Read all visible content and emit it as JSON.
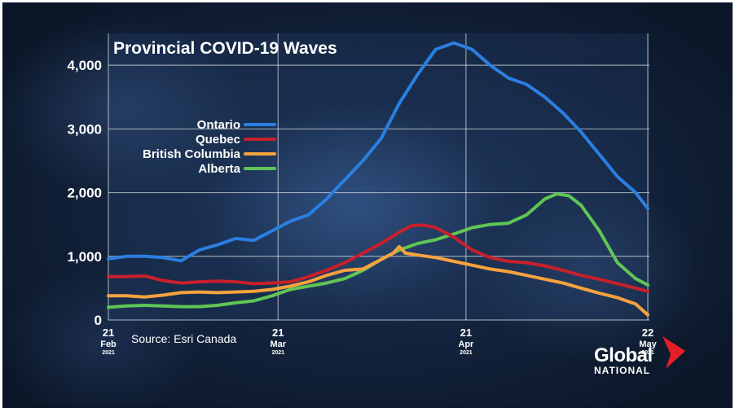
{
  "chart_data": {
    "type": "line",
    "title": "Provincial COVID-19 Waves",
    "source": "Source: Esri Canada",
    "xlabel": "",
    "ylabel": "",
    "ylim": [
      0,
      4500
    ],
    "yticks": [
      {
        "value": 0,
        "label": "0"
      },
      {
        "value": 1000,
        "label": "1,000"
      },
      {
        "value": 2000,
        "label": "2,000"
      },
      {
        "value": 3000,
        "label": "3,000"
      },
      {
        "value": 4000,
        "label": "4,000"
      }
    ],
    "xticks": [
      {
        "day": 0,
        "date": "21",
        "month": "Feb",
        "year": "2021"
      },
      {
        "day": 28,
        "date": "21",
        "month": "Mar",
        "year": "2021"
      },
      {
        "day": 59,
        "date": "21",
        "month": "Apr",
        "year": "2021"
      },
      {
        "day": 89,
        "date": "22",
        "month": "May",
        "year": "2021"
      }
    ],
    "grid": true,
    "legend_position": "upper-left",
    "series": [
      {
        "name": "Ontario",
        "color": "#2a7fe0",
        "x": [
          0,
          3,
          6,
          9,
          12,
          15,
          18,
          21,
          24,
          27,
          30,
          33,
          36,
          39,
          42,
          45,
          48,
          51,
          54,
          57,
          60,
          63,
          66,
          69,
          72,
          75,
          78,
          81,
          84,
          87,
          89
        ],
        "y": [
          960,
          1000,
          1000,
          980,
          930,
          1100,
          1180,
          1280,
          1250,
          1400,
          1550,
          1650,
          1900,
          2200,
          2500,
          2850,
          3400,
          3850,
          4250,
          4350,
          4250,
          4000,
          3800,
          3700,
          3500,
          3250,
          2950,
          2600,
          2250,
          2000,
          1750
        ]
      },
      {
        "name": "Quebec",
        "color": "#c8202b",
        "x": [
          0,
          3,
          6,
          9,
          12,
          15,
          18,
          21,
          24,
          27,
          30,
          33,
          36,
          39,
          42,
          45,
          48,
          50,
          52,
          54,
          57,
          60,
          63,
          66,
          69,
          72,
          75,
          78,
          81,
          84,
          87,
          89
        ],
        "y": [
          680,
          680,
          690,
          620,
          580,
          600,
          610,
          600,
          570,
          580,
          600,
          680,
          780,
          900,
          1050,
          1200,
          1380,
          1480,
          1490,
          1450,
          1300,
          1100,
          980,
          920,
          900,
          850,
          780,
          700,
          640,
          570,
          500,
          450
        ]
      },
      {
        "name": "British Columbia",
        "color": "#f7a23e",
        "x": [
          0,
          3,
          6,
          9,
          12,
          15,
          18,
          21,
          24,
          27,
          30,
          33,
          36,
          39,
          42,
          45,
          47,
          48,
          49,
          51,
          54,
          57,
          60,
          63,
          66,
          69,
          72,
          75,
          78,
          81,
          84,
          87,
          89
        ],
        "y": [
          380,
          380,
          360,
          390,
          430,
          440,
          430,
          440,
          450,
          480,
          530,
          600,
          700,
          780,
          800,
          950,
          1050,
          1150,
          1050,
          1020,
          980,
          920,
          860,
          800,
          760,
          700,
          640,
          580,
          500,
          420,
          350,
          250,
          80
        ]
      },
      {
        "name": "Alberta",
        "color": "#5fc654",
        "x": [
          0,
          3,
          6,
          9,
          12,
          15,
          18,
          21,
          24,
          27,
          30,
          33,
          36,
          39,
          42,
          45,
          48,
          51,
          54,
          57,
          60,
          63,
          66,
          69,
          72,
          74,
          76,
          78,
          81,
          84,
          87,
          89
        ],
        "y": [
          200,
          220,
          230,
          220,
          210,
          210,
          230,
          270,
          300,
          380,
          480,
          530,
          580,
          650,
          780,
          950,
          1100,
          1200,
          1260,
          1350,
          1450,
          1500,
          1520,
          1650,
          1900,
          1980,
          1950,
          1800,
          1400,
          900,
          650,
          550
        ]
      }
    ]
  },
  "branding": {
    "logo_word": "Global",
    "logo_sub": "NATIONAL"
  }
}
